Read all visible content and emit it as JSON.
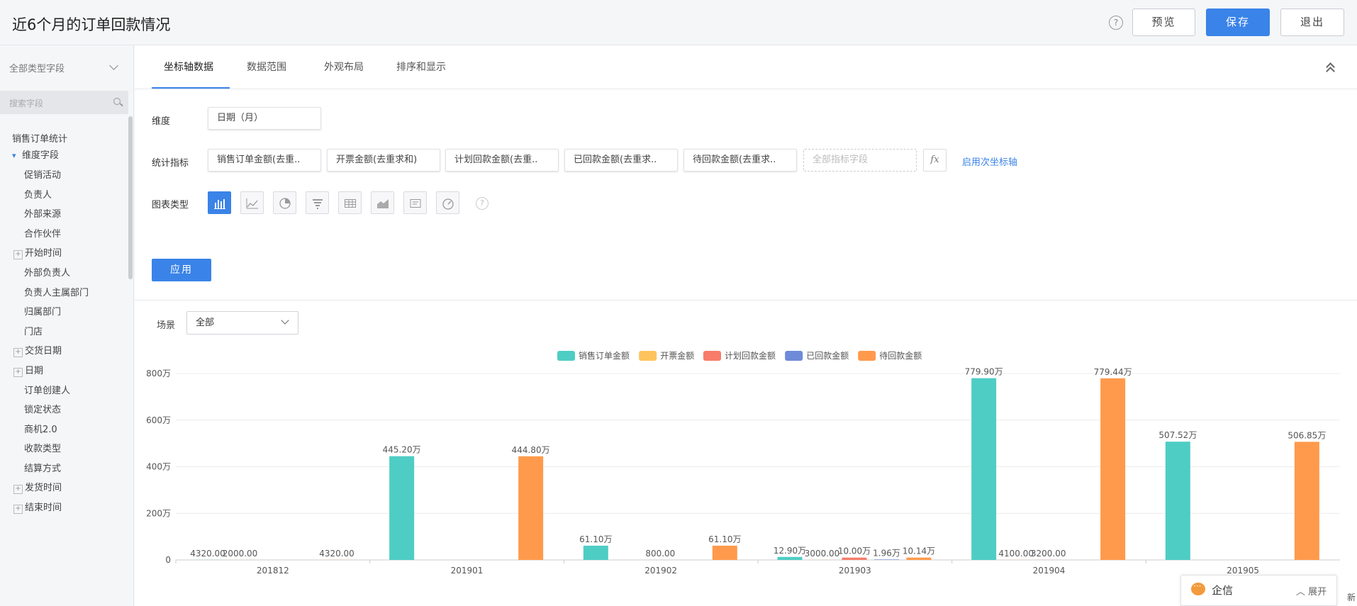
{
  "header": {
    "title": "近6个月的订单回款情况",
    "help": "?",
    "preview": "预览",
    "save": "保存",
    "exit": "退出"
  },
  "sidebar": {
    "select_label": "全部类型字段",
    "search_placeholder": "搜索字段",
    "items": [
      "销售订单统计",
      "维度字段",
      "促销活动",
      "负责人",
      "外部来源",
      "合作伙伴",
      "开始时间",
      "外部负责人",
      "负责人主属部门",
      "归属部门",
      "门店",
      "交货日期",
      "日期",
      "订单创建人",
      "锁定状态",
      "商机2.0",
      "收款类型",
      "结算方式",
      "发货时间",
      "结束时间"
    ]
  },
  "tabs": [
    "坐标轴数据",
    "数据范围",
    "外观布局",
    "排序和显示"
  ],
  "config": {
    "dimension_label": "维度",
    "dimension_value": "日期（月）",
    "metrics_label": "统计指标",
    "metrics": [
      "销售订单金额(去重..",
      "开票金额(去重求和)",
      "计划回款金额(去重..",
      "已回款金额(去重求..",
      "待回款金额(去重求.."
    ],
    "metric_placeholder": "全部指标字段",
    "fx": "fx",
    "secondary_axis_link": "启用次坐标轴",
    "chart_type_label": "图表类型",
    "chart_types": [
      "bar-chart-icon",
      "line-chart-icon",
      "pie-chart-icon",
      "funnel-chart-icon",
      "table-chart-icon",
      "area-chart-icon",
      "card-chart-icon",
      "gauge-chart-icon"
    ],
    "help": "?",
    "apply": "应用"
  },
  "scene": {
    "label": "场景",
    "value": "全部"
  },
  "chart_data": {
    "type": "bar",
    "categories": [
      "201812",
      "201901",
      "201902",
      "201903",
      "201904",
      "201905"
    ],
    "ylim": [
      0,
      800
    ],
    "yticks": [
      0,
      200,
      400,
      600,
      800
    ],
    "ytick_labels": [
      "0",
      "200万",
      "400万",
      "600万",
      "800万"
    ],
    "legend_position": "top-center",
    "grid": true,
    "series": [
      {
        "name": "销售订单金额",
        "color": "#4ecdc4",
        "values": [
          0.432,
          445.2,
          61.1,
          12.9,
          779.9,
          507.52
        ],
        "labels": [
          "4320.00",
          "445.20万",
          "61.10万",
          "12.90万",
          "779.90万",
          "507.52万"
        ]
      },
      {
        "name": "开票金额",
        "color": "#fdc45d",
        "values": [
          0.2,
          0,
          0,
          0.3,
          0.41,
          0
        ],
        "labels": [
          "2000.00",
          "",
          "",
          "3000.00",
          "4100.00",
          ""
        ]
      },
      {
        "name": "计划回款金额",
        "color": "#f77c6a",
        "values": [
          0,
          0,
          0.08,
          10.0,
          0.32,
          0
        ],
        "labels": [
          "",
          "",
          "800.00",
          "10.00万",
          "3200.00",
          ""
        ]
      },
      {
        "name": "已回款金额",
        "color": "#6e8bd9",
        "values": [
          0,
          0,
          0,
          1.96,
          0,
          0
        ],
        "labels": [
          "",
          "",
          "",
          "1.96万",
          "",
          ""
        ]
      },
      {
        "name": "待回款金额",
        "color": "#ff9a4c",
        "values": [
          0.432,
          444.8,
          61.1,
          10.14,
          779.44,
          506.85
        ],
        "labels": [
          "4320.00",
          "444.80万",
          "61.10万",
          "10.14万",
          "779.44万",
          "506.85万"
        ]
      }
    ]
  },
  "qixin": {
    "name": "企信",
    "expand": "展开"
  },
  "corner_text": "新"
}
